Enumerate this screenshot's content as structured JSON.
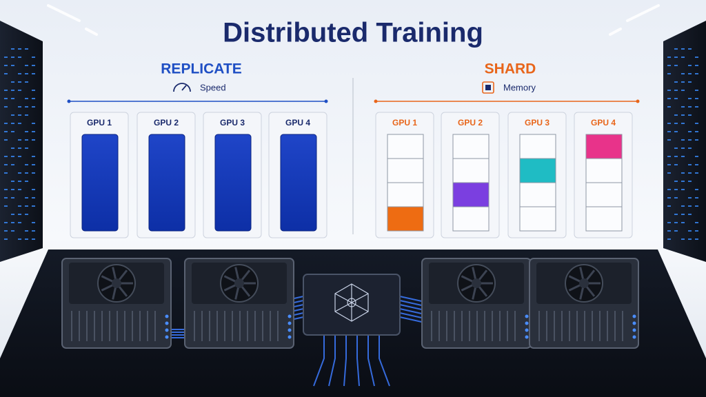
{
  "title": "Distributed Training",
  "replicate": {
    "heading": "REPLICATE",
    "caption": "Speed",
    "gpus": [
      "GPU 1",
      "GPU 2",
      "GPU 3",
      "GPU 4"
    ]
  },
  "shard": {
    "heading": "SHARD",
    "caption": "Memory",
    "gpus": [
      "GPU 1",
      "GPU 2",
      "GPU 3",
      "GPU 4"
    ]
  }
}
